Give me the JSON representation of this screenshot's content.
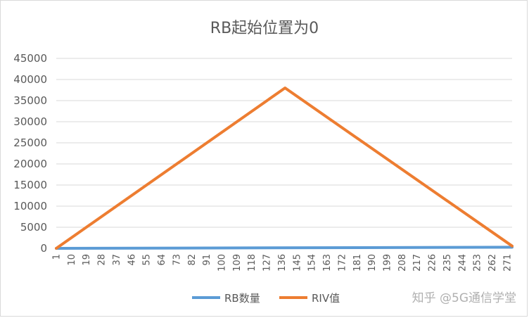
{
  "chart_data": {
    "type": "line",
    "title": "RB起始位置为0",
    "xlabel": "",
    "ylabel": "",
    "x_start": 1,
    "x_end": 274,
    "x_tick_labels": [
      "1",
      "10",
      "19",
      "28",
      "37",
      "46",
      "55",
      "64",
      "73",
      "82",
      "91",
      "100",
      "109",
      "118",
      "127",
      "136",
      "145",
      "154",
      "163",
      "172",
      "181",
      "190",
      "199",
      "208",
      "217",
      "226",
      "235",
      "244",
      "253",
      "262",
      "271"
    ],
    "ylim": [
      0,
      45000
    ],
    "y_tick_labels": [
      "0",
      "5000",
      "10000",
      "15000",
      "20000",
      "25000",
      "30000",
      "35000",
      "40000",
      "45000"
    ],
    "grid": true,
    "legend_position": "bottom",
    "series": [
      {
        "name": "RB数量",
        "color": "#5b9bd5",
        "points": [
          [
            1,
            1
          ],
          [
            274,
            273
          ]
        ]
      },
      {
        "name": "RIV值",
        "color": "#ed7d31",
        "points": [
          [
            1,
            0
          ],
          [
            138,
            38000
          ],
          [
            274,
            550
          ]
        ]
      }
    ]
  },
  "watermark": "知乎 @5G通信学堂"
}
